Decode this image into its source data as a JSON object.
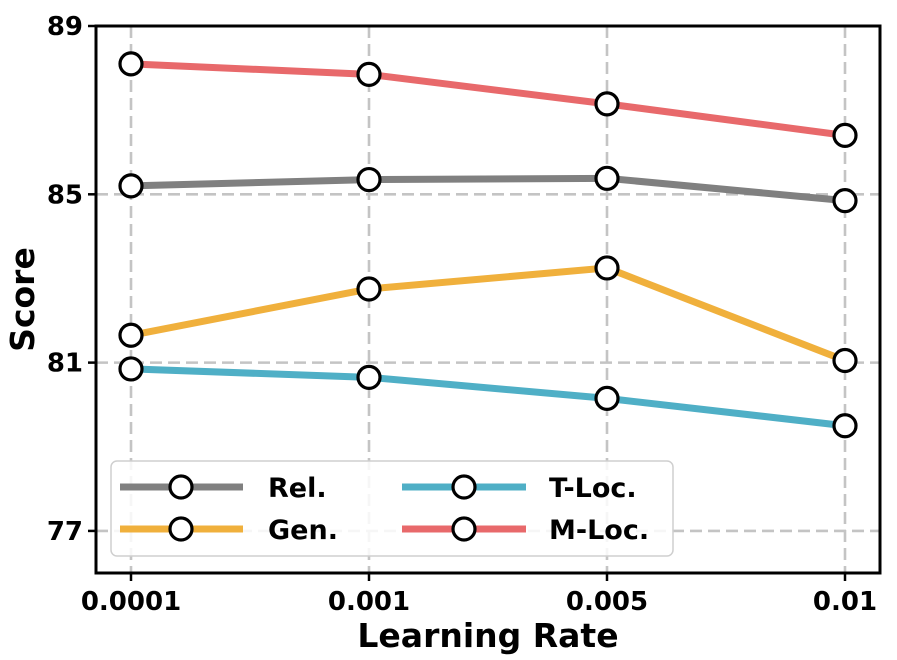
{
  "chart_data": {
    "type": "line",
    "title": "",
    "xlabel": "Learning Rate",
    "ylabel": "Score",
    "categories": [
      "0.0001",
      "0.001",
      "0.005",
      "0.01"
    ],
    "ylim": [
      76,
      89
    ],
    "yticks": [
      77,
      81,
      85,
      89
    ],
    "grid": true,
    "legend_position": "lower-left",
    "series": [
      {
        "name": "Rel.",
        "color": "#808080",
        "values": [
          85.2,
          85.35,
          85.38,
          84.85
        ]
      },
      {
        "name": "Gen.",
        "color": "#f0b03c",
        "values": [
          81.65,
          82.75,
          83.25,
          81.05
        ]
      },
      {
        "name": "T-Loc.",
        "color": "#4fafc6",
        "values": [
          80.85,
          80.65,
          80.15,
          79.5
        ]
      },
      {
        "name": "M-Loc.",
        "color": "#e8696b",
        "values": [
          88.1,
          87.85,
          87.15,
          86.4
        ]
      }
    ]
  }
}
